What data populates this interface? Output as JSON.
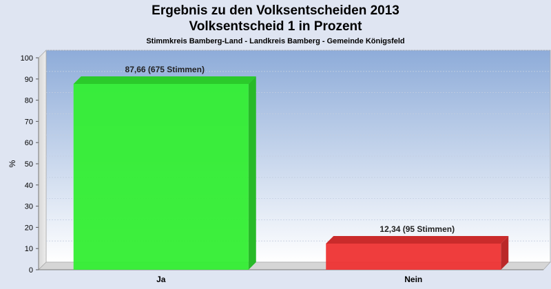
{
  "chart_data": {
    "type": "bar",
    "title": [
      "Ergebnis zu den Volksentscheiden 2013",
      "Volksentscheid 1 in Prozent"
    ],
    "subtitle": "Stimmkreis Bamberg-Land - Landkreis Bamberg - Gemeinde Königsfeld",
    "ylabel": "%",
    "xlabel": "",
    "ylim": [
      0,
      100
    ],
    "yticks": [
      0,
      10,
      20,
      30,
      40,
      50,
      60,
      70,
      80,
      90,
      100
    ],
    "categories": [
      "Ja",
      "Nein"
    ],
    "values": [
      87.66,
      12.34
    ],
    "data_labels": [
      "87,66 (675 Stimmen)",
      "12,34 (95 Stimmen)"
    ],
    "colors": [
      "#33ee33",
      "#ee3333"
    ],
    "grid": true,
    "legend": "none"
  }
}
